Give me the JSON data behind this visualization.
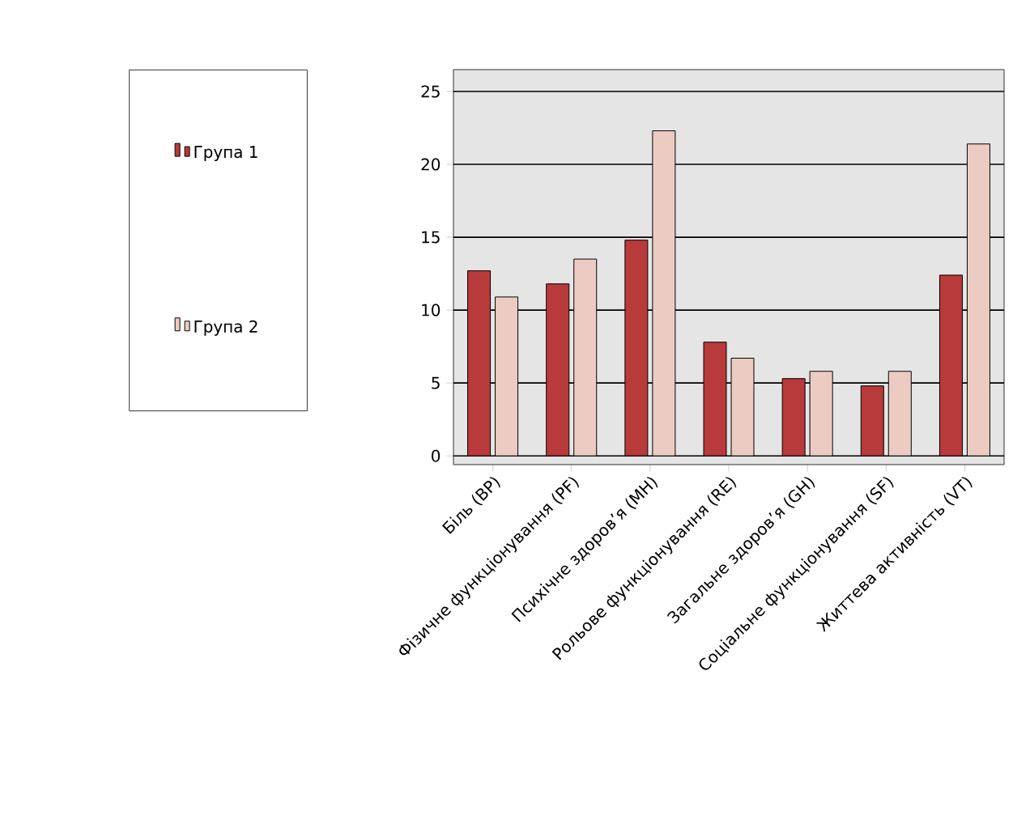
{
  "chart_data": {
    "type": "bar",
    "categories": [
      "Біль (BP)",
      "Фізичне функціонування (PF)",
      "Психічне здоров’я (MH)",
      "Рольове функціонування (RE)",
      "Загальне здоров’я (GH)",
      "Соціальне функціонування (SF)",
      "Життева активність (VT)"
    ],
    "series": [
      {
        "name": "Група 1",
        "color": "#b83a3a",
        "values": [
          12.7,
          11.8,
          14.8,
          7.8,
          5.3,
          4.8,
          12.4
        ]
      },
      {
        "name": "Група 2",
        "color": "#ecccc2",
        "values": [
          10.9,
          13.5,
          22.3,
          6.7,
          5.8,
          5.8,
          21.4
        ]
      }
    ],
    "ylim": [
      -0.6,
      26.5
    ],
    "yticks": [
      0,
      5,
      10,
      15,
      20,
      25
    ],
    "grid": "y",
    "legend": "left"
  }
}
